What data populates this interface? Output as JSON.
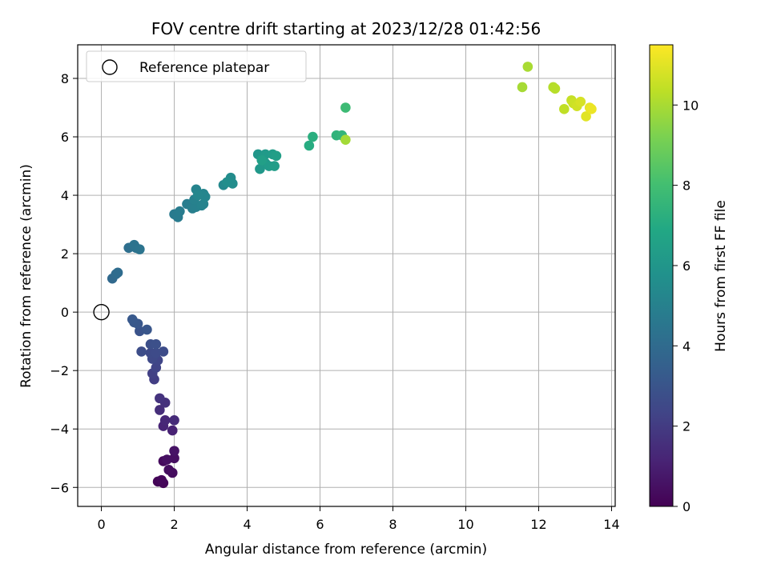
{
  "chart_data": {
    "type": "scatter",
    "title": "FOV centre drift starting at 2023/12/28 01:42:56",
    "xlabel": "Angular distance from reference (arcmin)",
    "ylabel": "Rotation from reference (arcmin)",
    "xlim": [
      -0.65,
      14.1
    ],
    "ylim": [
      -6.65,
      9.15
    ],
    "xticks": [
      0,
      2,
      4,
      6,
      8,
      10,
      12,
      14
    ],
    "yticks": [
      -6,
      -4,
      -2,
      0,
      2,
      4,
      6,
      8
    ],
    "grid": true,
    "colormap": "viridis",
    "colorbar": {
      "label": "Hours from first FF file",
      "range": [
        0,
        11.5
      ],
      "ticks": [
        0,
        2,
        4,
        6,
        8,
        10
      ]
    },
    "reference": {
      "label": "Reference platepar",
      "x": 0,
      "y": 0
    },
    "legend_position": "top-left",
    "series": [
      {
        "points": [
          [
            1.55,
            -5.8,
            0.1
          ],
          [
            1.7,
            -5.85,
            0.15
          ],
          [
            1.65,
            -5.75,
            0.2
          ],
          [
            1.7,
            -5.1,
            0.3
          ],
          [
            1.95,
            -5.5,
            0.35
          ],
          [
            1.85,
            -5.4,
            0.4
          ],
          [
            2.0,
            -5.0,
            0.45
          ],
          [
            1.8,
            -5.05,
            0.5
          ],
          [
            2.0,
            -4.75,
            0.6
          ],
          [
            1.95,
            -4.05,
            1.1
          ],
          [
            1.7,
            -3.9,
            1.2
          ],
          [
            1.75,
            -3.7,
            1.3
          ],
          [
            2.0,
            -3.7,
            1.4
          ],
          [
            1.6,
            -3.35,
            1.5
          ],
          [
            1.75,
            -3.1,
            1.6
          ],
          [
            1.6,
            -2.95,
            1.7
          ],
          [
            1.45,
            -2.3,
            2.1
          ],
          [
            1.4,
            -2.1,
            2.2
          ],
          [
            1.5,
            -1.9,
            2.3
          ],
          [
            1.55,
            -1.65,
            2.4
          ],
          [
            1.4,
            -1.6,
            2.5
          ],
          [
            1.35,
            -1.4,
            2.55
          ],
          [
            1.5,
            -1.4,
            2.6
          ],
          [
            1.7,
            -1.35,
            2.65
          ],
          [
            1.1,
            -1.35,
            2.7
          ],
          [
            1.35,
            -1.1,
            2.75
          ],
          [
            1.5,
            -1.1,
            2.8
          ],
          [
            1.05,
            -0.65,
            2.95
          ],
          [
            1.25,
            -0.6,
            3.05
          ],
          [
            1.0,
            -0.4,
            3.1
          ],
          [
            0.9,
            -0.35,
            3.15
          ],
          [
            0.85,
            -0.25,
            3.2
          ],
          [
            0.3,
            1.15,
            3.9
          ],
          [
            0.4,
            1.3,
            4.0
          ],
          [
            0.45,
            1.35,
            4.05
          ],
          [
            0.75,
            2.2,
            4.2
          ],
          [
            0.95,
            2.2,
            4.3
          ],
          [
            0.9,
            2.3,
            4.35
          ],
          [
            1.05,
            2.15,
            4.4
          ],
          [
            2.0,
            3.35,
            4.7
          ],
          [
            2.1,
            3.25,
            4.75
          ],
          [
            2.15,
            3.45,
            4.8
          ],
          [
            2.35,
            3.7,
            4.85
          ],
          [
            2.5,
            3.55,
            4.9
          ],
          [
            2.6,
            3.6,
            4.95
          ],
          [
            2.55,
            3.85,
            5.0
          ],
          [
            2.75,
            3.65,
            5.05
          ],
          [
            2.8,
            3.7,
            5.1
          ],
          [
            2.6,
            4.2,
            5.15
          ],
          [
            2.8,
            4.05,
            5.2
          ],
          [
            2.85,
            3.95,
            5.25
          ],
          [
            2.65,
            4.0,
            5.3
          ],
          [
            3.35,
            4.35,
            5.4
          ],
          [
            3.55,
            4.6,
            5.5
          ],
          [
            3.6,
            4.4,
            5.55
          ],
          [
            3.45,
            4.45,
            5.6
          ],
          [
            4.3,
            5.4,
            6.0
          ],
          [
            4.35,
            4.9,
            6.1
          ],
          [
            4.5,
            5.1,
            6.15
          ],
          [
            4.5,
            5.4,
            6.2
          ],
          [
            4.6,
            5.0,
            6.25
          ],
          [
            4.7,
            5.4,
            6.3
          ],
          [
            4.75,
            5.0,
            6.35
          ],
          [
            4.8,
            5.35,
            6.4
          ],
          [
            4.4,
            5.2,
            6.45
          ],
          [
            5.7,
            5.7,
            7.1
          ],
          [
            5.8,
            6.0,
            7.2
          ],
          [
            6.45,
            6.05,
            7.4
          ],
          [
            6.6,
            6.05,
            7.5
          ],
          [
            6.7,
            7.0,
            7.8
          ],
          [
            6.7,
            5.9,
            9.9
          ],
          [
            11.55,
            7.7,
            9.95
          ],
          [
            11.7,
            8.4,
            10.0
          ],
          [
            12.4,
            7.7,
            10.2
          ],
          [
            12.45,
            7.65,
            10.25
          ],
          [
            12.7,
            6.95,
            10.4
          ],
          [
            12.9,
            7.25,
            10.5
          ],
          [
            12.95,
            7.15,
            10.6
          ],
          [
            13.05,
            7.05,
            10.7
          ],
          [
            13.15,
            7.2,
            10.8
          ],
          [
            13.3,
            6.7,
            11.0
          ],
          [
            13.4,
            7.0,
            11.1
          ],
          [
            13.45,
            6.95,
            11.2
          ]
        ]
      }
    ]
  }
}
